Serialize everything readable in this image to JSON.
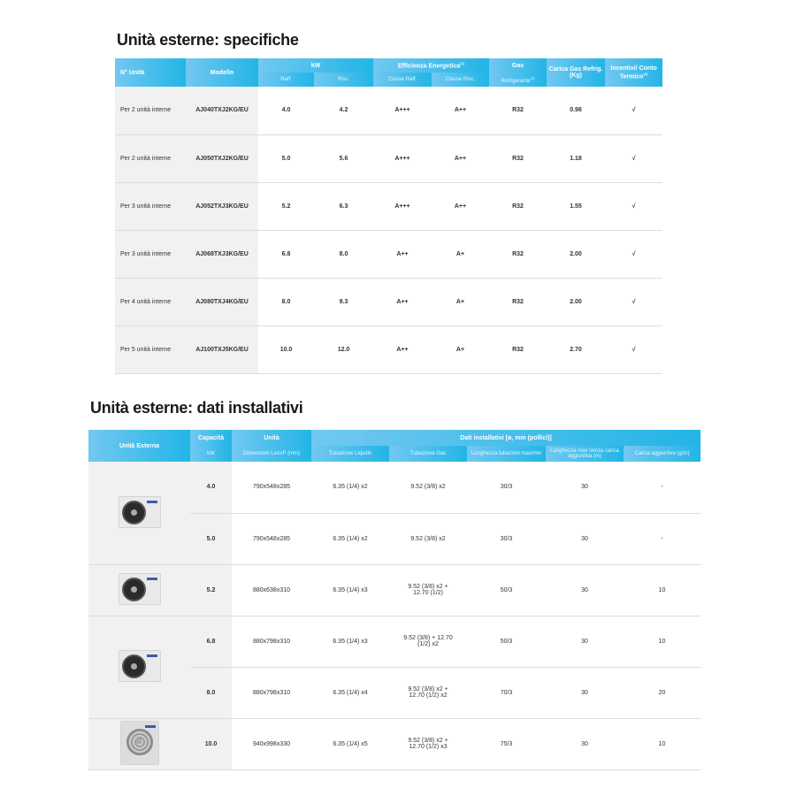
{
  "section1": {
    "title": "Unità esterne: specifiche",
    "headers": {
      "n_unita": "N° Unità",
      "modello": "Modello",
      "kw": "kW",
      "raff": "Raff.",
      "risc": "Risc.",
      "efficienza": "Efficienza Energetica",
      "eff_sup": "(1)",
      "classe_raff": "Classe Raff.",
      "classe_risc": "Classe Risc.",
      "gas": "Gas",
      "refrigerante": "Refrigerante",
      "refr_sup": "(2)",
      "carica_gas": "Carica Gas Refrig. (Kg)",
      "incentivi": "Incentivi/ Conto Termico",
      "inc_sup": "(3)"
    },
    "rows": [
      {
        "n": "Per 2 unità interne",
        "modello": "AJ040TXJ2KG/EU",
        "raff": "4.0",
        "risc": "4.2",
        "cr": "A+++",
        "cs": "A++",
        "gas": "R32",
        "carica": "0.98",
        "inc": "√"
      },
      {
        "n": "Per 2 unità interne",
        "modello": "AJ050TXJ2KG/EU",
        "raff": "5.0",
        "risc": "5.6",
        "cr": "A+++",
        "cs": "A++",
        "gas": "R32",
        "carica": "1.18",
        "inc": "√"
      },
      {
        "n": "Per 3 unità interne",
        "modello": "AJ052TXJ3KG/EU",
        "raff": "5.2",
        "risc": "6.3",
        "cr": "A+++",
        "cs": "A++",
        "gas": "R32",
        "carica": "1.55",
        "inc": "√"
      },
      {
        "n": "Per 3 unità interne",
        "modello": "AJ068TXJ3KG/EU",
        "raff": "6.8",
        "risc": "8.0",
        "cr": "A++",
        "cs": "A+",
        "gas": "R32",
        "carica": "2.00",
        "inc": "√"
      },
      {
        "n": "Per 4 unità interne",
        "modello": "AJ080TXJ4KG/EU",
        "raff": "8.0",
        "risc": "9.3",
        "cr": "A++",
        "cs": "A+",
        "gas": "R32",
        "carica": "2.00",
        "inc": "√"
      },
      {
        "n": "Per 5 unità interne",
        "modello": "AJ100TXJ5KG/EU",
        "raff": "10.0",
        "risc": "12.0",
        "cr": "A++",
        "cs": "A+",
        "gas": "R32",
        "carica": "2.70",
        "inc": "√"
      }
    ]
  },
  "section2": {
    "title": "Unità esterne: dati installativi",
    "headers": {
      "unita_esterna": "Unità Esterna",
      "capacita": "Capacità",
      "kw": "kW",
      "unita": "Unità",
      "dimensioni": "Dimensioni LxAxP (mm)",
      "dati": "Dati installativi [ø, mm (pollici)]",
      "liquido": "Tubazione Liquido",
      "gas": "Tubazione Gas",
      "lunghezza": "Lunghezza tubazioni max/min",
      "lunghezza_max": "Lunghezza max senza carica aggiuntiva (m)",
      "carica": "Carica aggiuntiva (g/m)"
    },
    "rows": [
      {
        "kw": "4.0",
        "dim": "790x548x285",
        "liq": "6.35 (1/4) x2",
        "gas": "9.52 (3/8) x2",
        "lung": "30/3",
        "lmax": "30",
        "car": "-"
      },
      {
        "kw": "5.0",
        "dim": "790x548x285",
        "liq": "6.35 (1/4) x2",
        "gas": "9.52 (3/8) x2",
        "lung": "30/3",
        "lmax": "30",
        "car": "-"
      },
      {
        "kw": "5.2",
        "dim": "880x638x310",
        "liq": "6.35 (1/4) x3",
        "gas": "9.52 (3/8) x2 + 12.70 (1/2)",
        "lung": "50/3",
        "lmax": "30",
        "car": "10"
      },
      {
        "kw": "6.8",
        "dim": "880x798x310",
        "liq": "6.35 (1/4) x3",
        "gas": "9.52 (3/8) + 12.70 (1/2) x2",
        "lung": "50/3",
        "lmax": "30",
        "car": "10"
      },
      {
        "kw": "8.0",
        "dim": "880x798x310",
        "liq": "6.35 (1/4) x4",
        "gas": "9.52 (3/8) x2 + 12.70 (1/2) x2",
        "lung": "70/3",
        "lmax": "30",
        "car": "20"
      },
      {
        "kw": "10.0",
        "dim": "940x998x330",
        "liq": "6.35 (1/4) x5",
        "gas": "9.52 (3/8) x2 + 12.70 (1/2) x3",
        "lung": "75/3",
        "lmax": "30",
        "car": "10"
      }
    ]
  },
  "colors": {
    "header_start": "#72c8f1",
    "header_end": "#22b5e6",
    "shaded": "#f1f1f1"
  }
}
